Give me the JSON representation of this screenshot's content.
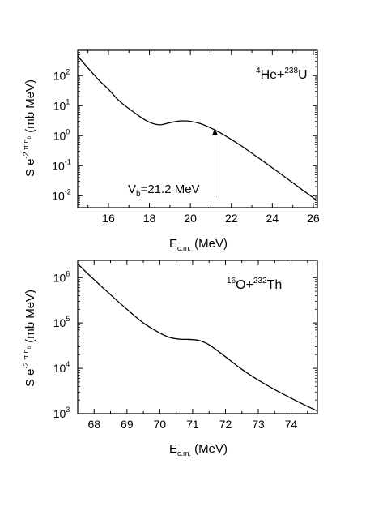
{
  "chart_data": [
    {
      "type": "line",
      "annotation": "⁴He+²³⁸U",
      "label_parts": {
        "m1": "4",
        "a": "He+",
        "m2": "238",
        "b": "U"
      },
      "xlabel_main": "E",
      "xlabel_sub": "c.m.",
      "xlabel_unit": " (MeV)",
      "ylabel_pre": "S e",
      "ylabel_exp": "-2 π η",
      "ylabel_exp_sub": "0",
      "ylabel_unit": " (mb MeV)",
      "xlim": [
        14.5,
        26.2
      ],
      "ylim": [
        0.004,
        700
      ],
      "y_scale": "log",
      "x_ticks": [
        16,
        18,
        20,
        22,
        24,
        26
      ],
      "y_ticks": [
        {
          "exp": -2,
          "label_base": "10",
          "label_exp": "-2"
        },
        {
          "exp": -1,
          "label_base": "10",
          "label_exp": "-1"
        },
        {
          "exp": 0,
          "label_base": "10",
          "label_exp": "0"
        },
        {
          "exp": 1,
          "label_base": "10",
          "label_exp": "1"
        },
        {
          "exp": 2,
          "label_base": "10",
          "label_exp": "2"
        }
      ],
      "series": [
        {
          "x": [
            14.5,
            15.0,
            15.5,
            16.0,
            16.5,
            17.0,
            17.5,
            18.0,
            18.5,
            19.0,
            19.5,
            20.0,
            20.5,
            21.0,
            21.5,
            22.0,
            22.5,
            23.0,
            23.5,
            24.0,
            24.5,
            25.0,
            25.5,
            26.0,
            26.2
          ],
          "y": [
            450,
            180,
            75,
            35,
            15,
            8.0,
            4.5,
            2.8,
            2.3,
            2.7,
            3.1,
            3.0,
            2.5,
            1.8,
            1.2,
            0.75,
            0.45,
            0.26,
            0.15,
            0.085,
            0.048,
            0.027,
            0.015,
            0.0085,
            0.0065
          ]
        }
      ],
      "arrow": {
        "x": 21.2,
        "y_from": 0.007,
        "y_to": 1.8,
        "label_pre": "V",
        "label_sub": "b",
        "label_post": "=21.2 MeV"
      }
    },
    {
      "type": "line",
      "annotation": "¹⁶O+²³²Th",
      "label_parts": {
        "m1": "16",
        "a": "O+",
        "m2": "232",
        "b": "Th"
      },
      "xlabel_main": "E",
      "xlabel_sub": "c.m.",
      "xlabel_unit": " (MeV)",
      "ylabel_pre": "S e",
      "ylabel_exp": "-2 π η",
      "ylabel_exp_sub": "0",
      "ylabel_unit": " (mb MeV)",
      "xlim": [
        67.5,
        74.8
      ],
      "ylim": [
        1000,
        2400000
      ],
      "y_scale": "log",
      "x_ticks": [
        68,
        69,
        70,
        71,
        72,
        73,
        74
      ],
      "y_ticks": [
        {
          "exp": 3,
          "label_base": "10",
          "label_exp": "3"
        },
        {
          "exp": 4,
          "label_base": "10",
          "label_exp": "4"
        },
        {
          "exp": 5,
          "label_base": "10",
          "label_exp": "5"
        },
        {
          "exp": 6,
          "label_base": "10",
          "label_exp": "6"
        }
      ],
      "series": [
        {
          "x": [
            67.5,
            68.0,
            68.5,
            69.0,
            69.5,
            70.0,
            70.3,
            70.6,
            70.8,
            71.0,
            71.2,
            71.5,
            72.0,
            72.5,
            73.0,
            73.5,
            74.0,
            74.5,
            74.8
          ],
          "y": [
            2000000,
            900000,
            420000,
            200000,
            100000,
            60000,
            48000,
            44000,
            43500,
            43000,
            41000,
            33000,
            18000,
            9500,
            5500,
            3400,
            2200,
            1450,
            1150
          ]
        }
      ]
    }
  ]
}
